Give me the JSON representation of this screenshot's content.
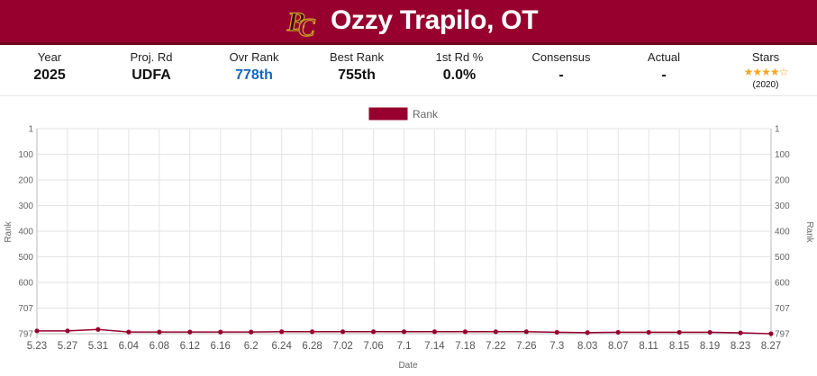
{
  "header": {
    "player_name": "Ozzy Trapilo, OT",
    "logo_icon": "bc-monogram-logo",
    "bg_color": "#97002e"
  },
  "stats": {
    "year": {
      "label": "Year",
      "value": "2025"
    },
    "proj_rd": {
      "label": "Proj. Rd",
      "value": "UDFA"
    },
    "ovr_rank": {
      "label": "Ovr Rank",
      "value": "778th"
    },
    "best_rank": {
      "label": "Best Rank",
      "value": "755th"
    },
    "first_rd": {
      "label": "1st Rd %",
      "value": "0.0%"
    },
    "consensus": {
      "label": "Consensus",
      "value": "-"
    },
    "actual": {
      "label": "Actual",
      "value": "-"
    },
    "stars": {
      "label": "Stars",
      "count": 4,
      "max": 5,
      "year": "(2020)"
    }
  },
  "chart_data": {
    "type": "line",
    "xlabel": "Date",
    "ylabel": "Rank",
    "y_reversed": true,
    "y_ticks": [
      "1",
      "100",
      "200",
      "300",
      "400",
      "500",
      "600",
      "707",
      "797"
    ],
    "grid": true,
    "legend_position": "top",
    "categories": [
      "5.23",
      "5.27",
      "5.31",
      "6.04",
      "6.08",
      "6.12",
      "6.16",
      "6.2",
      "6.24",
      "6.28",
      "7.02",
      "7.06",
      "7.1",
      "7.14",
      "7.18",
      "7.22",
      "7.26",
      "7.3",
      "8.03",
      "8.07",
      "8.11",
      "8.15",
      "8.19",
      "8.23",
      "8.27"
    ],
    "series": [
      {
        "name": "Rank",
        "color": "#97002e",
        "values": [
          787,
          787,
          782,
          791,
          791,
          791,
          791,
          791,
          790,
          790,
          790,
          790,
          790,
          790,
          790,
          790,
          790,
          792,
          793,
          792,
          792,
          792,
          792,
          794,
          797
        ]
      }
    ]
  }
}
